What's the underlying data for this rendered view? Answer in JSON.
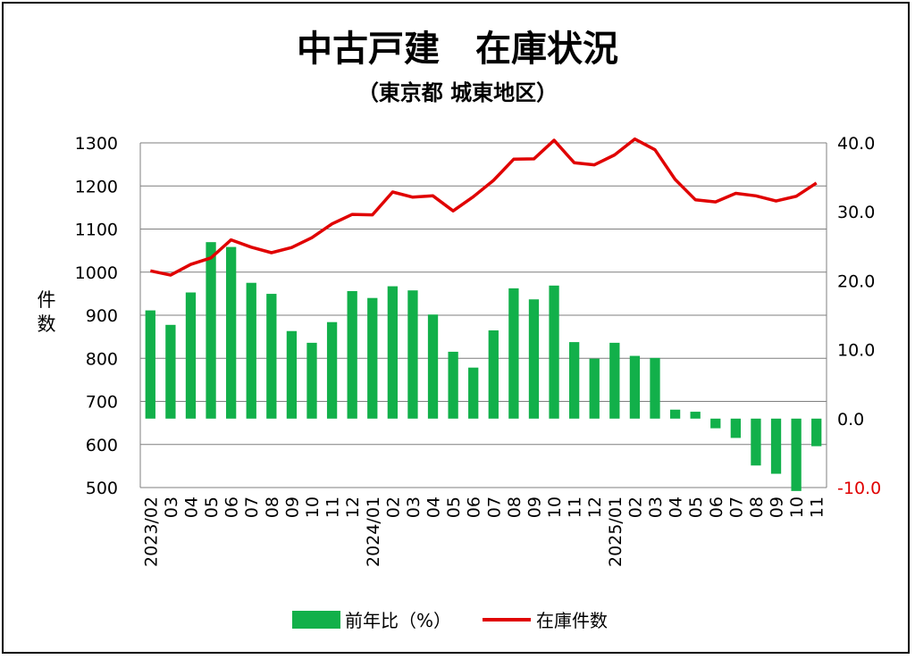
{
  "chart_data": {
    "type": "bar+line",
    "title": "中古戸建　在庫状況",
    "subtitle": "（東京都 城東地区）",
    "ylabel_left": "件数",
    "ylim_left": [
      500,
      1300
    ],
    "yticks_left": [
      "1300",
      "1200",
      "1100",
      "1000",
      "900",
      "800",
      "700",
      "600",
      "500"
    ],
    "ylim_right": [
      -10,
      40
    ],
    "yticks_right": [
      "40.0",
      "30.0",
      "20.0",
      "10.0",
      "0.0",
      "-10.0"
    ],
    "categories": [
      "2023/02",
      "03",
      "04",
      "05",
      "06",
      "07",
      "08",
      "09",
      "10",
      "11",
      "12",
      "2024/01",
      "02",
      "03",
      "04",
      "05",
      "06",
      "07",
      "08",
      "09",
      "10",
      "11",
      "12",
      "2025/01",
      "02",
      "03",
      "04",
      "05",
      "06",
      "07",
      "08",
      "09",
      "10",
      "11"
    ],
    "series": [
      {
        "name": "前年比(%)",
        "type": "bar",
        "axis": "right",
        "color": "#12b04a",
        "values": [
          15.7,
          13.6,
          18.3,
          25.6,
          24.9,
          19.7,
          18.1,
          12.7,
          11.0,
          14.0,
          18.5,
          17.5,
          19.2,
          18.6,
          15.1,
          9.7,
          7.4,
          12.8,
          18.9,
          17.3,
          19.3,
          11.1,
          8.7,
          11.0,
          9.1,
          8.8,
          1.3,
          1.0,
          -1.4,
          -2.8,
          -6.8,
          -8.0,
          -10.5,
          -4.0
        ]
      },
      {
        "name": "在庫件数",
        "type": "line",
        "axis": "left",
        "color": "#e00000",
        "values": [
          1003,
          993,
          1018,
          1033,
          1075,
          1058,
          1045,
          1057,
          1080,
          1112,
          1134,
          1133,
          1186,
          1174,
          1177,
          1142,
          1175,
          1213,
          1262,
          1263,
          1306,
          1254,
          1249,
          1272,
          1309,
          1284,
          1215,
          1168,
          1163,
          1183,
          1177,
          1165,
          1176,
          1207
        ]
      }
    ],
    "legend": {
      "position": "bottom",
      "labels": [
        "前年比（%）",
        "在庫件数"
      ]
    },
    "grid": true
  }
}
